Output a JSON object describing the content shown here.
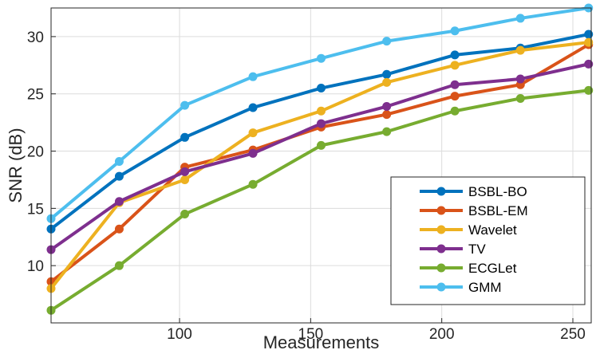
{
  "chart_data": {
    "type": "line",
    "title": "",
    "xlabel": "Measurements",
    "ylabel": "SNR (dB)",
    "xlim": [
      51,
      257
    ],
    "ylim": [
      5,
      32.5
    ],
    "xticks": [
      100,
      150,
      200,
      250
    ],
    "yticks": [
      10,
      15,
      20,
      25,
      30
    ],
    "grid": true,
    "legend_position": "bottom-right",
    "x": [
      51,
      77,
      102,
      128,
      154,
      179,
      205,
      230,
      256
    ],
    "series": [
      {
        "name": "BSBL-BO",
        "color": "#0072BD",
        "values": [
          13.2,
          17.8,
          21.2,
          23.8,
          25.5,
          26.7,
          28.4,
          29.0,
          30.2
        ]
      },
      {
        "name": "BSBL-EM",
        "color": "#D95319",
        "values": [
          8.6,
          13.2,
          18.6,
          20.1,
          22.1,
          23.2,
          24.8,
          25.8,
          29.3
        ]
      },
      {
        "name": "Wavelet",
        "color": "#EDB120",
        "values": [
          8.0,
          15.5,
          17.5,
          21.6,
          23.5,
          26.0,
          27.5,
          28.8,
          29.5
        ]
      },
      {
        "name": "TV",
        "color": "#7E2F8E",
        "values": [
          11.4,
          15.6,
          18.2,
          19.8,
          22.4,
          23.9,
          25.8,
          26.3,
          27.6
        ]
      },
      {
        "name": "ECGLet",
        "color": "#77AC30",
        "values": [
          6.1,
          10.0,
          14.5,
          17.1,
          20.5,
          21.7,
          23.5,
          24.6,
          25.3
        ]
      },
      {
        "name": "GMM",
        "color": "#4DBEEE",
        "values": [
          14.1,
          19.1,
          24.0,
          26.5,
          28.1,
          29.6,
          30.5,
          31.6,
          32.5
        ]
      }
    ]
  }
}
